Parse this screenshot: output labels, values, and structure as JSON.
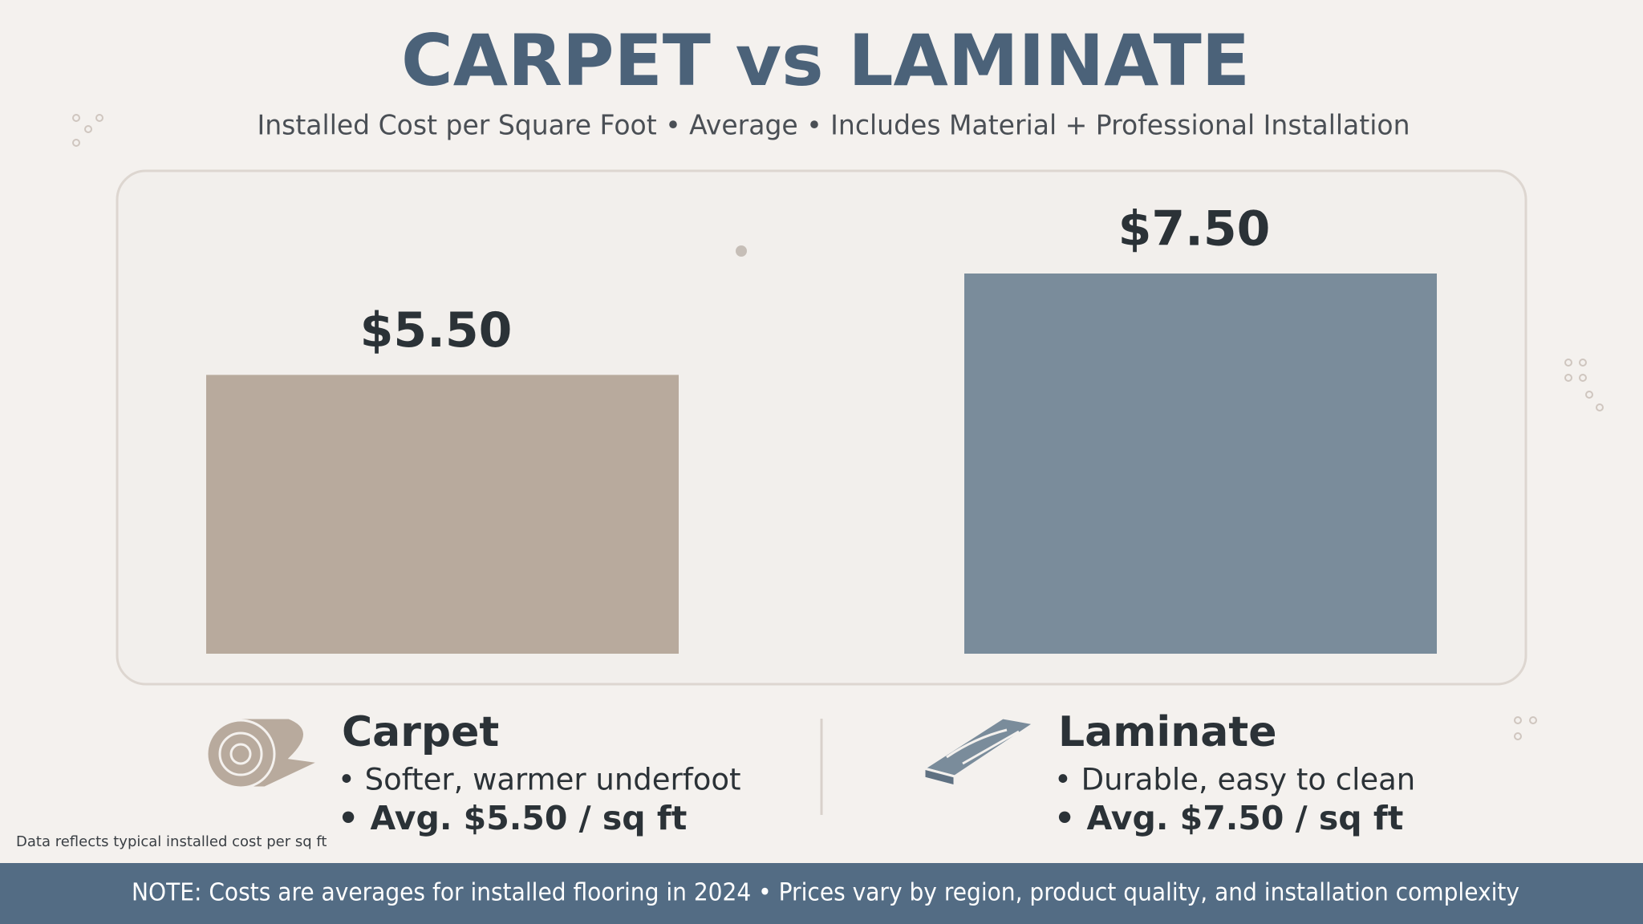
{
  "chart_data": {
    "type": "bar",
    "title": "CARPET vs LAMINATE",
    "subtitle": "Installed Cost per Square Foot • Average • Includes Material + Professional Installation",
    "categories": [
      "Carpet",
      "Laminate"
    ],
    "values": [
      5.5,
      7.5
    ],
    "value_labels": [
      "$5.50",
      "$7.50"
    ],
    "colors": [
      "#b8aa9d",
      "#7a8c9b"
    ],
    "details": [
      [
        "• Softer, warmer underfoot",
        "• Avg. $5.50 / sq ft"
      ],
      [
        "• Durable, easy to clean",
        "• Avg. $7.50 / sq ft"
      ]
    ],
    "footnote": "Data reflects typical installed cost per sq ft",
    "note": "NOTE: Costs are averages for installed flooring in 2024 • Prices vary by region, product quality, and installation complexity"
  }
}
